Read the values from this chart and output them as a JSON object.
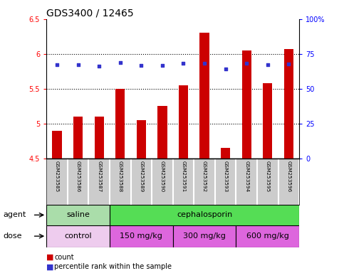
{
  "title": "GDS3400 / 12465",
  "samples": [
    "GSM253585",
    "GSM253586",
    "GSM253587",
    "GSM253588",
    "GSM253589",
    "GSM253590",
    "GSM253591",
    "GSM253592",
    "GSM253593",
    "GSM253594",
    "GSM253595",
    "GSM253596"
  ],
  "bar_values": [
    4.9,
    5.1,
    5.1,
    5.5,
    5.05,
    5.25,
    5.55,
    6.3,
    4.65,
    6.05,
    5.58,
    6.07
  ],
  "dot_values": [
    5.85,
    5.85,
    5.82,
    5.88,
    5.83,
    5.83,
    5.87,
    5.87,
    5.78,
    5.87,
    5.85,
    5.86
  ],
  "ylim": [
    4.5,
    6.5
  ],
  "yticks_left": [
    4.5,
    5.0,
    5.5,
    6.0,
    6.5
  ],
  "yticks_right": [
    0,
    25,
    50,
    75,
    100
  ],
  "ytick_right_labels": [
    "0",
    "25",
    "50",
    "75",
    "100%"
  ],
  "bar_color": "#cc0000",
  "dot_color": "#3333cc",
  "bar_bottom": 4.5,
  "agent_groups": [
    {
      "label": "saline",
      "start": 0,
      "end": 3,
      "color": "#aaeea a"
    },
    {
      "label": "cephalosporin",
      "start": 3,
      "end": 12,
      "color": "#44dd44"
    }
  ],
  "dose_groups": [
    {
      "label": "control",
      "start": 0,
      "end": 3,
      "color": "#eeccee"
    },
    {
      "label": "150 mg/kg",
      "start": 3,
      "end": 6,
      "color": "#ee55ee"
    },
    {
      "label": "300 mg/kg",
      "start": 6,
      "end": 9,
      "color": "#ee55ee"
    },
    {
      "label": "600 mg/kg",
      "start": 9,
      "end": 12,
      "color": "#ee55ee"
    }
  ],
  "agent_label": "agent",
  "dose_label": "dose",
  "legend_count_label": "count",
  "legend_pct_label": "percentile rank within the sample",
  "bg_color": "#ffffff",
  "sample_bg_color": "#cccccc",
  "title_fontsize": 10,
  "tick_fontsize": 7,
  "label_fontsize": 7.5
}
